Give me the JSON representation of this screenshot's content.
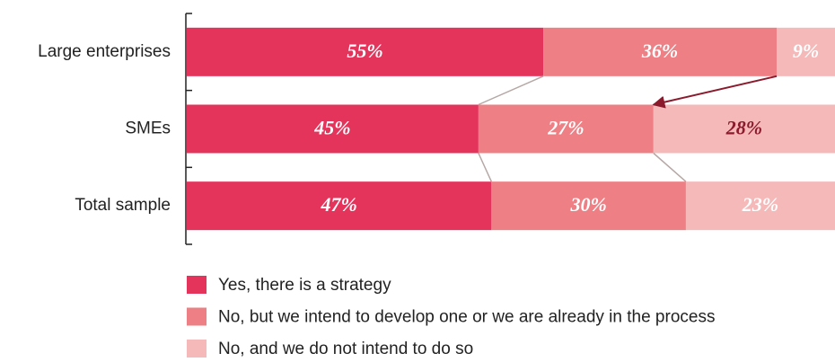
{
  "chart_data": {
    "type": "stacked-bar-horizontal",
    "categories": [
      "Large enterprises",
      "SMEs",
      "Total sample"
    ],
    "series": [
      {
        "name": "Yes, there is a strategy",
        "color": "#e5345b",
        "values": [
          55,
          45,
          47
        ],
        "value_labels": [
          "55%",
          "45%",
          "47%"
        ],
        "label_colors": [
          "#ffffff",
          "#ffffff",
          "#ffffff"
        ]
      },
      {
        "name": "No, but we intend to develop one or we are already in the process",
        "color": "#ee7f85",
        "values": [
          36,
          27,
          30
        ],
        "value_labels": [
          "36%",
          "27%",
          "30%"
        ],
        "label_colors": [
          "#ffffff",
          "#ffffff",
          "#ffffff"
        ]
      },
      {
        "name": "No, and we do not intend to do so",
        "color": "#f5b9b9",
        "values": [
          9,
          28,
          23
        ],
        "value_labels": [
          "9%",
          "28%",
          "23%"
        ],
        "label_colors": [
          "#ffffff",
          "#8a1a2c",
          "#ffffff"
        ]
      }
    ],
    "xlim": [
      0,
      100
    ]
  }
}
